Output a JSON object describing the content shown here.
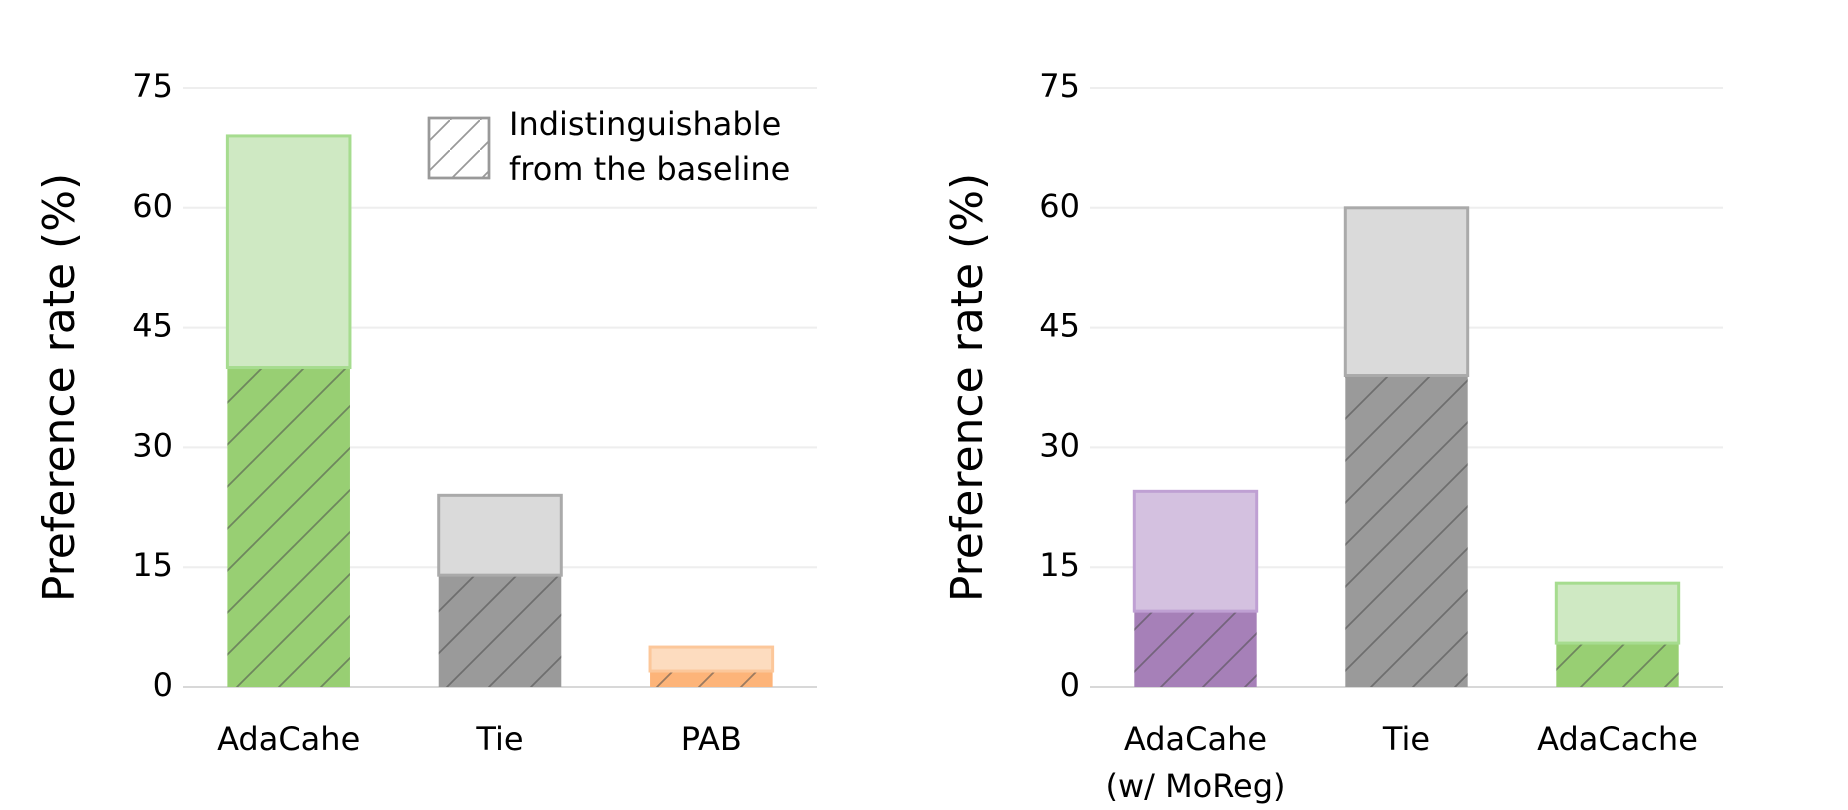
{
  "chart_data": [
    {
      "type": "stacked_bar",
      "ylabel": "Preference rate (%)",
      "categories": [
        [
          "AdaCahe"
        ],
        [
          "Tie"
        ],
        [
          "PAB"
        ]
      ],
      "series": [
        {
          "values": [
            40,
            14,
            2
          ],
          "hatch": true,
          "colors": [
            "#98cf73",
            "#9a9a9a",
            "#fdb479"
          ]
        },
        {
          "values": [
            29,
            10,
            3
          ],
          "hatch": false,
          "colors": [
            "#cfe9c3",
            "#dadada",
            "#fddcbf"
          ],
          "edges": [
            "#a6dc8f",
            "#aaaaaa",
            "#fcc79a"
          ]
        }
      ],
      "ylim": [
        0,
        75
      ],
      "yticks": [
        0,
        15,
        30,
        45,
        60,
        75
      ],
      "grid": true,
      "legend": [
        "Indistinguishable",
        "from the baseline"
      ]
    },
    {
      "type": "stacked_bar",
      "ylabel": "Preference rate (%)",
      "categories": [
        [
          "AdaCahe",
          "(w/ MoReg)"
        ],
        [
          "Tie"
        ],
        [
          "AdaCache"
        ]
      ],
      "series": [
        {
          "values": [
            9.5,
            39,
            5.5
          ],
          "hatch": true,
          "colors": [
            "#a680b8",
            "#9a9a9a",
            "#98cf73"
          ]
        },
        {
          "values": [
            15,
            21,
            7.5
          ],
          "hatch": false,
          "colors": [
            "#d4c1e0",
            "#dadada",
            "#cfe9c3"
          ],
          "edges": [
            "#bfa0d3",
            "#aaaaaa",
            "#a6dc8f"
          ]
        }
      ],
      "ylim": [
        0,
        75
      ],
      "yticks": [
        0,
        15,
        30,
        45,
        60,
        75
      ],
      "grid": true
    }
  ]
}
